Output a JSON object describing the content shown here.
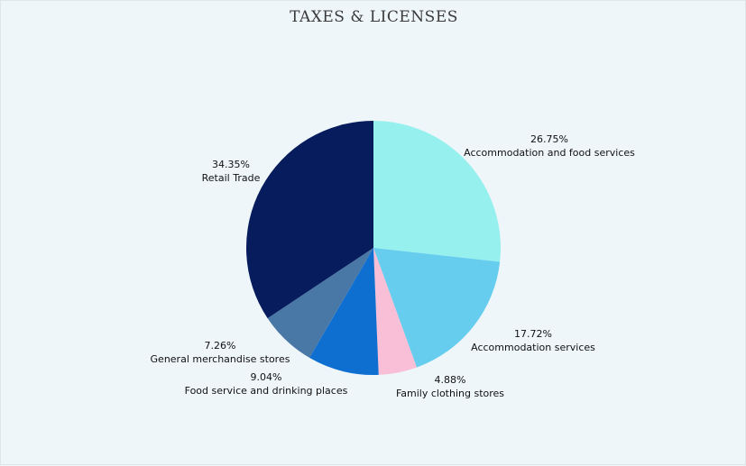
{
  "chart_data": {
    "type": "pie",
    "title": "TAXES &  LICENSES",
    "slices": [
      {
        "label": "Accommodation and food services",
        "value": 26.75,
        "display": "26.75%",
        "color": "#96f0ee"
      },
      {
        "label": "Accommodation services",
        "value": 17.72,
        "display": "17.72%",
        "color": "#66cdee"
      },
      {
        "label": "Family clothing stores",
        "value": 4.88,
        "display": "4.88%",
        "color": "#f9bfd6"
      },
      {
        "label": "Food service and drinking places",
        "value": 9.04,
        "display": "9.04%",
        "color": "#0e6fd0"
      },
      {
        "label": "General merchandise stores",
        "value": 7.26,
        "display": "7.26%",
        "color": "#4a78a6"
      },
      {
        "label": "Retail Trade",
        "value": 34.35,
        "display": "34.35%",
        "color": "#071c5c"
      }
    ]
  }
}
